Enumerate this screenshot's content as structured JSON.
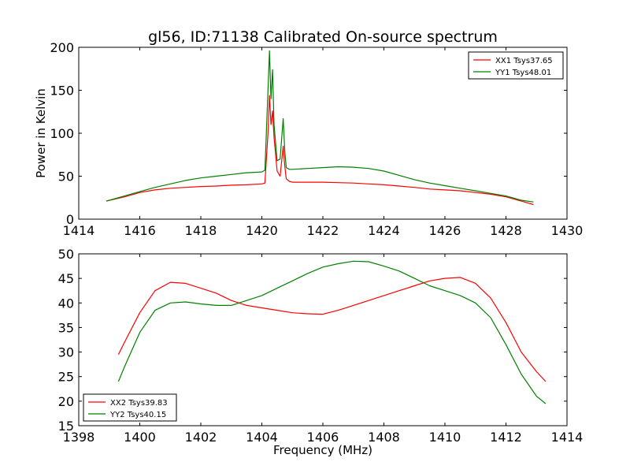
{
  "title": "gl56, ID:71138 Calibrated On-source spectrum",
  "chart_data": [
    {
      "type": "line",
      "title": "gl56, ID:71138 Calibrated On-source spectrum",
      "xlabel": "",
      "ylabel": "Power in Kelvin",
      "xlim": [
        1414,
        1430
      ],
      "ylim": [
        0,
        200
      ],
      "xticks": [
        1414,
        1416,
        1418,
        1420,
        1422,
        1424,
        1426,
        1428,
        1430
      ],
      "yticks": [
        0,
        50,
        100,
        150,
        200
      ],
      "legend_position": "top-right",
      "grid": false,
      "series": [
        {
          "name": "XX1 Tsys37.65",
          "color": "#ff0000",
          "x": [
            1414.9,
            1415.5,
            1416.0,
            1416.5,
            1417.0,
            1417.5,
            1418.0,
            1418.5,
            1419.0,
            1419.5,
            1420.0,
            1420.1,
            1420.2,
            1420.25,
            1420.3,
            1420.35,
            1420.4,
            1420.5,
            1420.6,
            1420.7,
            1420.75,
            1420.8,
            1420.9,
            1421.0,
            1421.5,
            1422.0,
            1422.5,
            1423.0,
            1423.5,
            1424.0,
            1424.5,
            1425.0,
            1425.5,
            1426.0,
            1426.5,
            1427.0,
            1427.5,
            1428.0,
            1428.5,
            1428.9
          ],
          "values": [
            21,
            26,
            31,
            34,
            36,
            37,
            38,
            38.5,
            39.5,
            40,
            41,
            42,
            100,
            144,
            110,
            126,
            95,
            56,
            50,
            85,
            62,
            47,
            44,
            43,
            43,
            43,
            42.5,
            42,
            41,
            40,
            38.5,
            37,
            35,
            34,
            33,
            31,
            29,
            26,
            21,
            17
          ]
        },
        {
          "name": "YY1 Tsys48.01",
          "color": "#008000",
          "x": [
            1414.9,
            1415.5,
            1416.0,
            1416.5,
            1417.0,
            1417.5,
            1418.0,
            1418.5,
            1419.0,
            1419.5,
            1420.0,
            1420.1,
            1420.2,
            1420.25,
            1420.3,
            1420.35,
            1420.4,
            1420.5,
            1420.6,
            1420.7,
            1420.75,
            1420.8,
            1420.9,
            1421.0,
            1421.5,
            1422.0,
            1422.5,
            1423.0,
            1423.5,
            1424.0,
            1424.5,
            1425.0,
            1425.5,
            1426.0,
            1426.5,
            1427.0,
            1427.5,
            1428.0,
            1428.5,
            1428.9
          ],
          "values": [
            21,
            27,
            32,
            37,
            41,
            45,
            48,
            50,
            52,
            54,
            55,
            57,
            150,
            196,
            140,
            174,
            110,
            68,
            70,
            117,
            80,
            60,
            58,
            58,
            59,
            60,
            61,
            60.5,
            59,
            56,
            51,
            46,
            42,
            39,
            36,
            33,
            30,
            27,
            22,
            20
          ]
        }
      ]
    },
    {
      "type": "line",
      "title": "",
      "xlabel": "Frequency (MHz)",
      "ylabel": "",
      "xlim": [
        1398,
        1414
      ],
      "ylim": [
        15,
        50
      ],
      "xticks": [
        1398,
        1400,
        1402,
        1404,
        1406,
        1408,
        1410,
        1412,
        1414
      ],
      "yticks": [
        15,
        20,
        25,
        30,
        35,
        40,
        45,
        50
      ],
      "legend_position": "bottom-left",
      "grid": false,
      "series": [
        {
          "name": "XX2 Tsys39.83",
          "color": "#ff0000",
          "x": [
            1399.3,
            1399.5,
            1400.0,
            1400.5,
            1401.0,
            1401.5,
            1402.0,
            1402.5,
            1403.0,
            1403.5,
            1404.0,
            1404.5,
            1405.0,
            1405.5,
            1406.0,
            1406.5,
            1407.0,
            1407.5,
            1408.0,
            1408.5,
            1409.0,
            1409.5,
            1410.0,
            1410.5,
            1411.0,
            1411.5,
            1412.0,
            1412.5,
            1413.0,
            1413.3
          ],
          "values": [
            29.5,
            32,
            38,
            42.5,
            44.2,
            44,
            43,
            42,
            40.5,
            39.5,
            39,
            38.5,
            38,
            37.8,
            37.7,
            38.5,
            39.5,
            40.5,
            41.5,
            42.5,
            43.5,
            44.5,
            45,
            45.2,
            44,
            41,
            36,
            30,
            26,
            24
          ]
        },
        {
          "name": "YY2 Tsys40.15",
          "color": "#008000",
          "x": [
            1399.3,
            1399.5,
            1400.0,
            1400.5,
            1401.0,
            1401.5,
            1402.0,
            1402.5,
            1403.0,
            1403.5,
            1404.0,
            1404.5,
            1405.0,
            1405.5,
            1406.0,
            1406.5,
            1407.0,
            1407.5,
            1408.0,
            1408.5,
            1409.0,
            1409.5,
            1410.0,
            1410.5,
            1411.0,
            1411.5,
            1412.0,
            1412.5,
            1413.0,
            1413.3
          ],
          "values": [
            24,
            27,
            34,
            38.5,
            40,
            40.2,
            39.8,
            39.5,
            39.5,
            40.5,
            41.5,
            43,
            44.5,
            46,
            47.3,
            48,
            48.5,
            48.4,
            47.5,
            46.5,
            45,
            43.5,
            42.5,
            41.5,
            40,
            37,
            31.5,
            25.5,
            21,
            19.5
          ]
        }
      ]
    }
  ]
}
